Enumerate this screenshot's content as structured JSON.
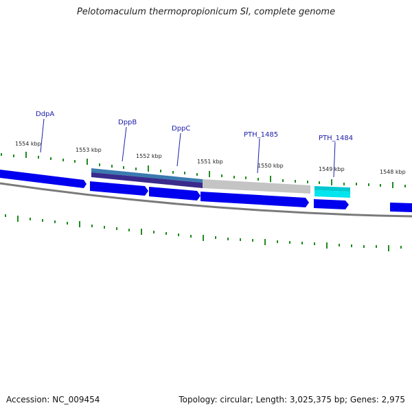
{
  "title": "Pelotomaculum thermopropionicum SI, complete genome",
  "footer": {
    "accession": "Accession: NC_009454",
    "summary": "Topology: circular; Length: 3,025,375 bp; Genes: 2,975"
  },
  "colors": {
    "gene_blue": "#0000ee",
    "tick_green": "#1f8a1f",
    "backbone": "#808080",
    "label_blue": "#1a1aaa",
    "cyan": "#00e5ee"
  },
  "kbp_labels": [
    "1554 kbp",
    "1553 kbp",
    "1552 kbp",
    "1551 kbp",
    "1550 kbp",
    "1549 kbp",
    "1548 kbp"
  ],
  "gene_labels": [
    "DdpA",
    "DppB",
    "DppC",
    "PTH_1485",
    "PTH_1484"
  ]
}
